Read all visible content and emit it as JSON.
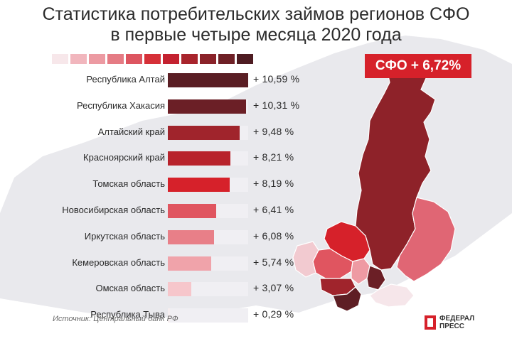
{
  "title_lines": [
    "Статистика потребительских займов регионов СФО",
    "в первые четыре месяца 2020 года"
  ],
  "badge": "СФО + 6,72%",
  "source": "Источник: Центральный банк РФ",
  "logo": {
    "line1": "ФЕДЕРАЛ",
    "line2": "ПРЕСС"
  },
  "scale_colors": [
    "#f7e7ea",
    "#f1b6bd",
    "#ec9aa2",
    "#e57b84",
    "#dd5560",
    "#d63038",
    "#c42230",
    "#a8242c",
    "#8a2229",
    "#6e2026",
    "#4e1c22"
  ],
  "map_colors": {
    "krasnoyarsk": "#8e2229",
    "irkutsk": "#e06674",
    "tomsk": "#d6212a",
    "novosibirsk": "#e05560",
    "omsk": "#f2cad0",
    "kemerovo": "#ee9aa3",
    "altai_krai": "#a0242c",
    "altai_rep": "#5e1e24",
    "khakasia": "#6b1f26",
    "tyva": "#f6e6ea",
    "neighbor": "#e6e6ea"
  },
  "chart_data": {
    "type": "bar",
    "orientation": "horizontal",
    "title": "Статистика потребительских займов регионов СФО в первые четыре месяца 2020 года",
    "categories": [
      "Республика Алтай",
      "Республика Хакасия",
      "Алтайский край",
      "Красноярский край",
      "Томская область",
      "Новосибирская область",
      "Иркутская область",
      "Кемеровская область",
      "Омская область",
      "Республика Тыва"
    ],
    "values": [
      10.59,
      10.31,
      9.48,
      8.21,
      8.19,
      6.41,
      6.08,
      5.74,
      3.07,
      0.29
    ],
    "value_labels": [
      "+ 10,59 %",
      "+ 10,31 %",
      "+ 9,48 %",
      "+ 8,21 %",
      "+ 8,19 %",
      "+ 6,41 %",
      "+ 6,08 %",
      "+ 5,74 %",
      "+ 3,07 %",
      "+ 0,29 %"
    ],
    "colors": [
      "#5a1e24",
      "#6b1f26",
      "#a0242c",
      "#b8232c",
      "#d6212a",
      "#e05560",
      "#e87f88",
      "#f0a3aa",
      "#f6c6cb",
      "#f6eef0"
    ],
    "xlim": [
      0,
      10.59
    ],
    "total_label": "СФО + 6,72%",
    "total_value": 6.72
  }
}
